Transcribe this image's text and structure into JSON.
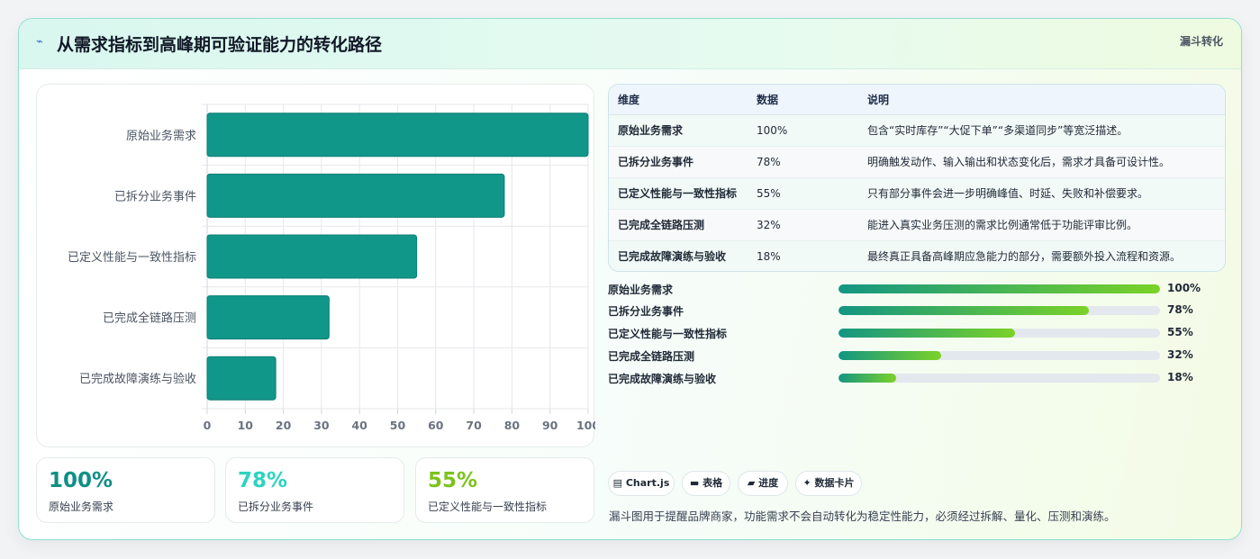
{
  "header": {
    "icon": "lightning-icon",
    "title": "从需求指标到高峰期可验证能力的转化路径",
    "tag": "漏斗转化"
  },
  "chart_data": {
    "type": "bar",
    "orientation": "horizontal",
    "categories": [
      "原始业务需求",
      "已拆分业务事件",
      "已定义性能与一致性指标",
      "已完成全链路压测",
      "已完成故障演练与验收"
    ],
    "values": [
      100,
      78,
      55,
      32,
      18
    ],
    "xlim": [
      0,
      100
    ],
    "xticks": [
      "0",
      "10",
      "20",
      "30",
      "40",
      "50",
      "60",
      "70",
      "80",
      "90",
      "100"
    ],
    "grid": true,
    "color": "#11968a"
  },
  "kpis": [
    {
      "value": "100%",
      "label": "原始业务需求",
      "color": "#0f8f86"
    },
    {
      "value": "78%",
      "label": "已拆分业务事件",
      "color": "#2dd4bf"
    },
    {
      "value": "55%",
      "label": "已定义性能与一致性指标",
      "color": "#7cc31c"
    }
  ],
  "table": {
    "headers": [
      "维度",
      "数据",
      "说明"
    ],
    "rows": [
      [
        "原始业务需求",
        "100%",
        "包含“实时库存”“大促下单”“多渠道同步”等宽泛描述。"
      ],
      [
        "已拆分业务事件",
        "78%",
        "明确触发动作、输入输出和状态变化后，需求才具备可设计性。"
      ],
      [
        "已定义性能与一致性指标",
        "55%",
        "只有部分事件会进一步明确峰值、时延、失败和补偿要求。"
      ],
      [
        "已完成全链路压测",
        "32%",
        "能进入真实业务压测的需求比例通常低于功能评审比例。"
      ],
      [
        "已完成故障演练与验收",
        "18%",
        "最终真正具备高峰期应急能力的部分，需要额外投入流程和资源。"
      ]
    ]
  },
  "progress": [
    {
      "label": "原始业务需求",
      "value": 100,
      "text": "100%"
    },
    {
      "label": "已拆分业务事件",
      "value": 78,
      "text": "78%"
    },
    {
      "label": "已定义性能与一致性指标",
      "value": 55,
      "text": "55%"
    },
    {
      "label": "已完成全链路压测",
      "value": 32,
      "text": "32%"
    },
    {
      "label": "已完成故障演练与验收",
      "value": 18,
      "text": "18%"
    }
  ],
  "chips": [
    {
      "icon": "chart-icon",
      "label": "Chart.js"
    },
    {
      "icon": "table-icon",
      "label": "表格"
    },
    {
      "icon": "progress-icon",
      "label": "进度"
    },
    {
      "icon": "sparkle-icon",
      "label": "数据卡片"
    }
  ],
  "note": "漏斗图用于提醒品牌商家，功能需求不会自动转化为稳定性能力，必须经过拆解、量化、压测和演练。"
}
